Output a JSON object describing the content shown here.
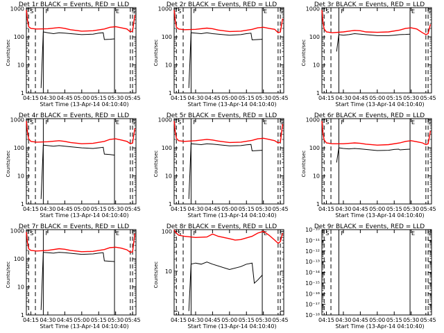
{
  "chart_data": [
    {
      "type": "line",
      "title": "Det 1r BLACK = Events, RED = LLD",
      "xlabel": "Start Time (13-Apr-14 04:10:40)",
      "ylabel": "Counts/sec",
      "scale": "log",
      "yticks": [
        "1",
        "10",
        "100",
        "1000"
      ],
      "ylim": [
        1,
        1100
      ],
      "xticks": [
        "04:15",
        "04:30",
        "04:45",
        "05:00",
        "05:15",
        "05:30",
        "05:45"
      ],
      "markers": {
        "S_start": "S",
        "F": "F",
        "E": "E",
        "S_end": "S"
      },
      "series": [
        {
          "name": "RED = LLD",
          "color": "#ff0000",
          "x": [
            "04:11",
            "04:12",
            "04:13",
            "04:15",
            "04:20",
            "04:30",
            "04:40",
            "04:45",
            "04:50",
            "05:00",
            "05:10",
            "05:20",
            "05:25",
            "05:30",
            "05:35",
            "05:40",
            "05:43",
            "05:45",
            "05:47"
          ],
          "values": [
            900,
            400,
            230,
            200,
            190,
            195,
            215,
            200,
            180,
            160,
            165,
            190,
            220,
            230,
            210,
            190,
            150,
            160,
            600
          ]
        },
        {
          "name": "BLACK = Events",
          "color": "#000000",
          "x": [
            "04:24",
            "04:26",
            "04:30",
            "04:35",
            "04:40",
            "04:45",
            "05:00",
            "05:10",
            "05:15",
            "05:19",
            "05:20",
            "05:25",
            "05:29"
          ],
          "values": [
            1.5,
            150,
            140,
            130,
            140,
            135,
            120,
            125,
            135,
            140,
            80,
            82,
            85
          ]
        }
      ]
    },
    {
      "type": "line",
      "title": "Det 2r BLACK = Events, RED = LLD",
      "xlabel": "Start Time (13-Apr-14 04:10:40)",
      "ylabel": "Counts/sec",
      "scale": "log",
      "yticks": [
        "1",
        "10",
        "100",
        "1000"
      ],
      "ylim": [
        1,
        1100
      ],
      "xticks": [
        "04:15",
        "04:30",
        "04:45",
        "05:00",
        "05:15",
        "05:30",
        "05:45"
      ],
      "markers": {
        "S_start": "S",
        "F": "F",
        "E": "E",
        "S_end": "S"
      },
      "series": [
        {
          "name": "RED = LLD",
          "color": "#ff0000",
          "x": [
            "04:11",
            "04:12",
            "04:13",
            "04:15",
            "04:20",
            "04:30",
            "04:40",
            "04:45",
            "04:50",
            "05:00",
            "05:10",
            "05:20",
            "05:25",
            "05:30",
            "05:35",
            "05:40",
            "05:43",
            "05:45",
            "05:47"
          ],
          "values": [
            900,
            380,
            220,
            190,
            180,
            185,
            205,
            195,
            175,
            155,
            160,
            185,
            210,
            220,
            200,
            185,
            140,
            150,
            450
          ]
        },
        {
          "name": "BLACK = Events",
          "color": "#000000",
          "x": [
            "04:24",
            "04:26",
            "04:30",
            "04:35",
            "04:40",
            "04:45",
            "05:00",
            "05:10",
            "05:15",
            "05:19",
            "05:20",
            "05:25",
            "05:29"
          ],
          "values": [
            1.5,
            140,
            135,
            130,
            140,
            130,
            115,
            120,
            130,
            135,
            78,
            80,
            82
          ]
        }
      ]
    },
    {
      "type": "line",
      "title": "Det 3r BLACK = Events, RED = LLD",
      "xlabel": "Start Time (13-Apr-14 04:10:40)",
      "ylabel": "Counts/sec",
      "scale": "log",
      "yticks": [
        "1",
        "10",
        "100",
        "1000"
      ],
      "ylim": [
        1,
        1100
      ],
      "xticks": [
        "04:15",
        "04:30",
        "04:45",
        "05:00",
        "05:15",
        "05:30",
        "05:45"
      ],
      "markers": {
        "S_start": "S",
        "F": "F",
        "E": "E",
        "S_end": "S"
      },
      "series": [
        {
          "name": "RED = LLD",
          "color": "#ff0000",
          "x": [
            "04:11",
            "04:12",
            "04:13",
            "04:15",
            "04:20",
            "04:30",
            "04:40",
            "04:45",
            "04:50",
            "05:00",
            "05:10",
            "05:20",
            "05:25",
            "05:30",
            "05:35",
            "05:40",
            "05:43",
            "05:45",
            "05:47"
          ],
          "values": [
            900,
            320,
            190,
            150,
            140,
            150,
            170,
            165,
            150,
            145,
            150,
            175,
            200,
            210,
            190,
            140,
            120,
            130,
            280
          ]
        },
        {
          "name": "BLACK = Events",
          "color": "#000000",
          "x": [
            "04:24",
            "04:26",
            "04:30",
            "04:35",
            "04:40",
            "04:45",
            "05:00",
            "05:10",
            "05:15",
            "05:20",
            "05:25",
            "05:29"
          ],
          "values": [
            30,
            120,
            115,
            120,
            130,
            125,
            110,
            110,
            115,
            120,
            122,
            125
          ]
        }
      ]
    },
    {
      "type": "line",
      "title": "Det 4r BLACK = Events, RED = LLD",
      "xlabel": "Start Time (13-Apr-14 04:10:40)",
      "ylabel": "Counts/sec",
      "scale": "log",
      "yticks": [
        "1",
        "10",
        "100",
        "1000"
      ],
      "ylim": [
        1,
        1100
      ],
      "xticks": [
        "04:15",
        "04:30",
        "04:45",
        "05:00",
        "05:15",
        "05:30",
        "05:45"
      ],
      "markers": {
        "S_start": "S",
        "F": "F",
        "E": "E",
        "S_end": "S"
      },
      "series": [
        {
          "name": "RED = LLD",
          "color": "#ff0000",
          "x": [
            "04:11",
            "04:12",
            "04:13",
            "04:15",
            "04:20",
            "04:30",
            "04:40",
            "04:45",
            "04:50",
            "05:00",
            "05:10",
            "05:20",
            "05:25",
            "05:30",
            "05:35",
            "05:40",
            "05:43",
            "05:45",
            "05:47"
          ],
          "values": [
            900,
            350,
            210,
            170,
            160,
            165,
            180,
            170,
            155,
            140,
            145,
            170,
            200,
            210,
            190,
            170,
            140,
            150,
            500
          ]
        },
        {
          "name": "BLACK = Events",
          "color": "#000000",
          "x": [
            "04:24",
            "04:26",
            "04:30",
            "04:35",
            "04:40",
            "04:45",
            "05:00",
            "05:10",
            "05:15",
            "05:19",
            "05:20",
            "05:25",
            "05:29"
          ],
          "values": [
            1.5,
            125,
            120,
            115,
            120,
            115,
            100,
            95,
            100,
            105,
            60,
            58,
            55
          ]
        }
      ]
    },
    {
      "type": "line",
      "title": "Det 5r BLACK = Events, RED = LLD",
      "xlabel": "Start Time (13-Apr-14 04:10:40)",
      "ylabel": "Counts/sec",
      "scale": "log",
      "yticks": [
        "1",
        "10",
        "100",
        "1000"
      ],
      "ylim": [
        1,
        1100
      ],
      "xticks": [
        "04:15",
        "04:30",
        "04:45",
        "05:00",
        "05:15",
        "05:30",
        "05:45"
      ],
      "markers": {
        "S_start": "S",
        "F": "F",
        "E": "E",
        "S_end": "S"
      },
      "series": [
        {
          "name": "RED = LLD",
          "color": "#ff0000",
          "x": [
            "04:11",
            "04:12",
            "04:13",
            "04:15",
            "04:20",
            "04:30",
            "04:40",
            "04:45",
            "04:50",
            "05:00",
            "05:10",
            "05:20",
            "05:25",
            "05:30",
            "05:35",
            "05:40",
            "05:43",
            "05:45",
            "05:47"
          ],
          "values": [
            900,
            360,
            220,
            180,
            170,
            180,
            200,
            190,
            175,
            155,
            160,
            185,
            210,
            220,
            200,
            180,
            150,
            160,
            700
          ]
        },
        {
          "name": "BLACK = Events",
          "color": "#000000",
          "x": [
            "04:24",
            "04:26",
            "04:30",
            "04:35",
            "04:40",
            "04:45",
            "05:00",
            "05:10",
            "05:15",
            "05:19",
            "05:20",
            "05:25",
            "05:29"
          ],
          "values": [
            1.5,
            140,
            135,
            130,
            140,
            135,
            118,
            120,
            128,
            132,
            78,
            80,
            82
          ]
        }
      ]
    },
    {
      "type": "line",
      "title": "Det 6r BLACK = Events, RED = LLD",
      "xlabel": "Start Time (13-Apr-14 04:10:40)",
      "ylabel": "Counts/sec",
      "scale": "log",
      "yticks": [
        "1",
        "10",
        "100",
        "1000"
      ],
      "ylim": [
        1,
        1100
      ],
      "xticks": [
        "04:15",
        "04:30",
        "04:45",
        "05:00",
        "05:15",
        "05:30",
        "05:45"
      ],
      "markers": {
        "S_start": "S",
        "F": "F",
        "E": "E",
        "S_end": "S"
      },
      "series": [
        {
          "name": "RED = LLD",
          "color": "#ff0000",
          "x": [
            "04:11",
            "04:12",
            "04:13",
            "04:15",
            "04:20",
            "04:30",
            "04:40",
            "04:45",
            "04:50",
            "05:00",
            "05:10",
            "05:20",
            "05:25",
            "05:30",
            "05:35",
            "05:40",
            "05:43",
            "05:45",
            "05:47"
          ],
          "values": [
            900,
            320,
            190,
            150,
            140,
            140,
            150,
            145,
            135,
            125,
            130,
            150,
            170,
            180,
            165,
            150,
            130,
            140,
            400
          ]
        },
        {
          "name": "BLACK = Events",
          "color": "#000000",
          "x": [
            "04:24",
            "04:26",
            "04:30",
            "04:35",
            "04:40",
            "04:45",
            "05:00",
            "05:10",
            "05:15",
            "05:19",
            "05:20",
            "05:25",
            "05:29"
          ],
          "values": [
            30,
            100,
            95,
            92,
            95,
            92,
            80,
            82,
            88,
            90,
            85,
            88,
            90
          ]
        }
      ]
    },
    {
      "type": "line",
      "title": "Det 7r BLACK = Events, RED = LLD",
      "xlabel": "Start Time (13-Apr-14 04:10:40)",
      "ylabel": "Counts/sec",
      "scale": "log",
      "yticks": [
        "1",
        "10",
        "100",
        "1000"
      ],
      "ylim": [
        1,
        1100
      ],
      "xticks": [
        "04:15",
        "04:30",
        "04:45",
        "05:00",
        "05:15",
        "05:30",
        "05:45"
      ],
      "markers": {
        "S_start": "S",
        "F": "F",
        "E": "E",
        "S_end": "S"
      },
      "series": [
        {
          "name": "RED = LLD",
          "color": "#ff0000",
          "x": [
            "04:11",
            "04:12",
            "04:13",
            "04:15",
            "04:20",
            "04:30",
            "04:40",
            "04:45",
            "04:50",
            "05:00",
            "05:10",
            "05:20",
            "05:25",
            "05:30",
            "05:35",
            "05:40",
            "05:43",
            "05:45",
            "05:47"
          ],
          "values": [
            900,
            380,
            230,
            200,
            190,
            200,
            230,
            220,
            200,
            180,
            185,
            215,
            250,
            260,
            240,
            210,
            170,
            180,
            800
          ]
        },
        {
          "name": "BLACK = Events",
          "color": "#000000",
          "x": [
            "04:24",
            "04:26",
            "04:30",
            "04:35",
            "04:40",
            "04:45",
            "05:00",
            "05:10",
            "05:15",
            "05:19",
            "05:20",
            "05:25",
            "05:29"
          ],
          "values": [
            1.5,
            170,
            165,
            160,
            170,
            165,
            145,
            150,
            160,
            165,
            85,
            82,
            80
          ]
        }
      ]
    },
    {
      "type": "line",
      "title": "Det 8r BLACK = Events, RED = LLD",
      "xlabel": "Start Time (13-Apr-14 04:10:40)",
      "ylabel": "Counts/sec",
      "scale": "log",
      "yticks": [
        "10",
        "100"
      ],
      "ylim": [
        0.8,
        110
      ],
      "xticks": [
        "04:15",
        "04:30",
        "04:45",
        "05:00",
        "05:15",
        "05:30",
        "05:45"
      ],
      "markers": {
        "S_start": "S",
        "F": "F",
        "E": "E",
        "S_end": "S"
      },
      "series": [
        {
          "name": "RED = LLD",
          "color": "#ff0000",
          "x": [
            "04:11",
            "04:12",
            "04:15",
            "04:20",
            "04:30",
            "04:40",
            "04:45",
            "04:50",
            "05:00",
            "05:05",
            "05:10",
            "05:20",
            "05:25",
            "05:30",
            "05:35",
            "05:40",
            "05:43",
            "05:45",
            "05:47"
          ],
          "values": [
            110,
            95,
            80,
            75,
            70,
            72,
            85,
            75,
            65,
            60,
            62,
            75,
            90,
            100,
            80,
            60,
            50,
            55,
            90
          ]
        },
        {
          "name": "BLACK = Events",
          "color": "#000000",
          "x": [
            "04:24",
            "04:26",
            "04:30",
            "04:35",
            "04:40",
            "04:45",
            "05:00",
            "05:10",
            "05:15",
            "05:20",
            "05:22",
            "05:25",
            "05:29"
          ],
          "values": [
            1,
            15,
            16,
            15,
            17,
            15,
            11,
            13,
            15,
            16,
            5,
            6,
            8
          ]
        }
      ]
    },
    {
      "type": "line",
      "title": "Det 9r BLACK = Events, RED = LLD",
      "xlabel": "Start Time (13-Apr-14 04:10:40)",
      "ylabel": "",
      "scale": "log",
      "yticks": [
        "10⁻¹⁰",
        "10⁻¹¹",
        "10⁻¹²",
        "10⁻¹³",
        "10⁻¹⁴",
        "10⁻¹⁵",
        "10⁻¹⁶",
        "10⁻¹⁷",
        "10⁻¹⁸"
      ],
      "ylim": [
        1e-18,
        1e-10
      ],
      "xticks": [
        "04:15",
        "04:30",
        "04:45",
        "05:00",
        "05:15",
        "05:30",
        "05:45"
      ],
      "markers": {
        "S_start": "S",
        "F": "F",
        "E": "E",
        "S_end": "S"
      },
      "series": []
    }
  ]
}
